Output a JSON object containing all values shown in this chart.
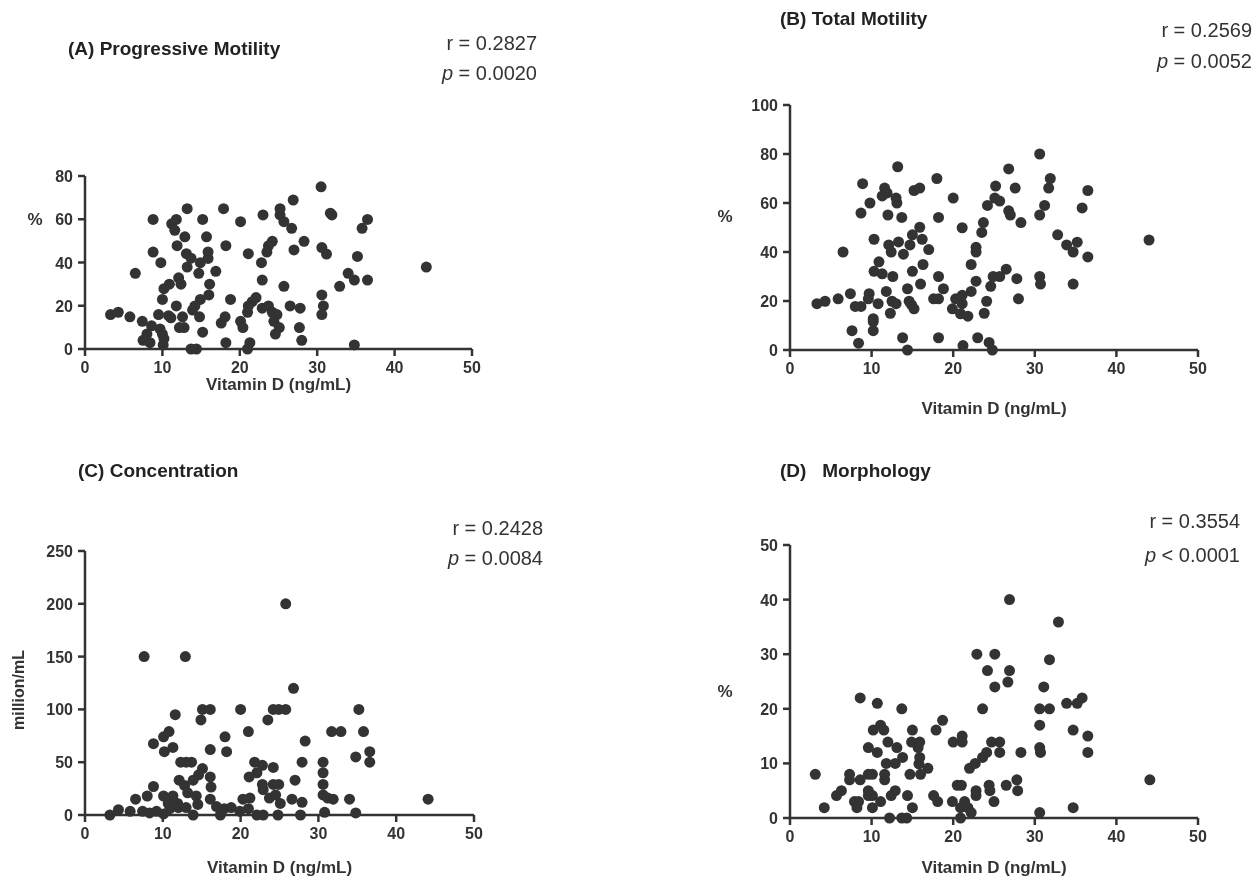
{
  "chart_data": [
    {
      "type": "scatter",
      "title": "(A) Progressive Motility",
      "xlabel": "Vitamin D (ng/mL)",
      "ylabel": "%",
      "annotations": [
        "r = 0.2827",
        "p = 0.0020"
      ],
      "color": "#333333",
      "marker": "circle",
      "xlim": [
        0,
        50
      ],
      "xticks": [
        0,
        10,
        20,
        30,
        40,
        50
      ],
      "ylim": [
        0,
        80
      ],
      "yticks": [
        0,
        20,
        40,
        60,
        80
      ],
      "x": [
        30.5,
        26.9,
        13.2,
        17.9,
        25.2,
        25.2,
        23,
        31.7,
        31.9,
        36.5,
        35.8,
        8.8,
        11.8,
        11.2,
        11.6,
        15.2,
        20.1,
        25.7,
        26.7,
        12.9,
        15.7,
        28.3,
        24.2,
        23.7,
        11.9,
        18.2,
        23.5,
        27,
        30.6,
        31.2,
        35.2,
        8.8,
        13.1,
        13.7,
        15.9,
        15.9,
        21.1,
        9.8,
        14.9,
        22.8,
        44.1,
        13.2,
        6.5,
        14.7,
        16.9,
        34,
        12.1,
        12.4,
        10.9,
        10.2,
        16.1,
        22.9,
        25.7,
        34.8,
        36.5,
        32.9,
        10,
        14.9,
        16,
        18.8,
        22.1,
        21.6,
        21.1,
        30.6,
        30.8,
        30.6,
        11.8,
        14.2,
        13.9,
        22.9,
        23.7,
        26.5,
        27.8,
        24.2,
        24.8,
        3.3,
        4.3,
        5.8,
        9.5,
        10.8,
        11.1,
        12.6,
        14.8,
        18.1,
        17.6,
        21,
        20.1,
        20.4,
        24.4,
        7.4,
        8.6,
        9.7,
        10,
        10.2,
        10.1,
        8,
        7.5,
        8.4,
        12.2,
        12.8,
        15.2,
        25.1,
        24.6,
        27.7,
        28,
        18.2,
        21.3,
        21,
        13.7,
        14.4,
        34.8
      ],
      "values": [
        75,
        68.9,
        64.9,
        64.9,
        64.9,
        62,
        62,
        62.8,
        62,
        59.9,
        55.8,
        59.9,
        59.9,
        57.9,
        54.9,
        59.9,
        58.9,
        58.9,
        55.8,
        51.9,
        51.9,
        49.8,
        49.8,
        47.7,
        47.8,
        47.8,
        44.8,
        45.8,
        46.9,
        43.9,
        42.8,
        44.8,
        44.1,
        42,
        44.9,
        41.9,
        44.1,
        39.9,
        39.9,
        39.9,
        37.9,
        37.9,
        35,
        35,
        35.9,
        35,
        32.9,
        30,
        30,
        27.9,
        30,
        31.9,
        29,
        31.9,
        31.9,
        29,
        22.9,
        22.9,
        25,
        22.9,
        23.8,
        21.9,
        19.9,
        25,
        19.9,
        15.9,
        19.9,
        19.9,
        18,
        18.9,
        19.9,
        19.9,
        18.9,
        17,
        15.9,
        15.9,
        17,
        14.9,
        15.9,
        15.4,
        14.4,
        14.9,
        14.9,
        14.9,
        12,
        17,
        12.8,
        9.9,
        12.8,
        12.8,
        10.7,
        9.2,
        6.9,
        4.8,
        1.9,
        6.9,
        4,
        2.9,
        9.9,
        9.9,
        7.8,
        9.9,
        6.9,
        9.9,
        4,
        2.9,
        2.9,
        0,
        0,
        0,
        1.9
      ]
    },
    {
      "type": "scatter",
      "title": "(B) Total Motility",
      "xlabel": "Vitamin D (ng/mL)",
      "ylabel": "%",
      "annotations": [
        "r = 0.2569",
        "p = 0.0052"
      ],
      "color": "#333333",
      "marker": "circle",
      "xlim": [
        0,
        50
      ],
      "xticks": [
        0,
        10,
        20,
        30,
        40,
        50
      ],
      "ylim": [
        0,
        100
      ],
      "yticks": [
        0,
        20,
        40,
        60,
        80,
        100
      ],
      "x": [
        30.6,
        13.2,
        26.8,
        18,
        31.9,
        31.7,
        8.9,
        11.6,
        11.3,
        11.9,
        13,
        13.1,
        15.2,
        15.9,
        25.2,
        27.6,
        36.5,
        20,
        25.1,
        25.7,
        24.2,
        9.8,
        31.2,
        30.6,
        35.8,
        8.7,
        12,
        13.7,
        18.2,
        26.8,
        27,
        28.3,
        21.1,
        23.7,
        23.5,
        15.9,
        15,
        16.2,
        10.3,
        12.1,
        13.3,
        12.4,
        14.7,
        13.9,
        17,
        6.5,
        22.8,
        22.8,
        32.8,
        33.9,
        35.2,
        34.7,
        36.5,
        44,
        10.9,
        10.3,
        11.3,
        12.6,
        15,
        16.3,
        22.2,
        18.2,
        16,
        22.8,
        24.9,
        25.7,
        26.5,
        27.8,
        30.6,
        30.7,
        34.7,
        3.3,
        4.3,
        5.9,
        7.4,
        8,
        8.7,
        9.7,
        9.6,
        10.8,
        11.8,
        12.5,
        13,
        14.4,
        14.6,
        14.9,
        15.2,
        17.6,
        18.2,
        18.8,
        20.3,
        21.1,
        21.1,
        19.9,
        20.9,
        21.8,
        22.2,
        24.6,
        24.1,
        23.8,
        28,
        10.2,
        10.2,
        12.3,
        7.6,
        8.4,
        10.2,
        13.8,
        14.4,
        18.2,
        21.2,
        23,
        24.4,
        24.8
      ],
      "values": [
        80,
        74.8,
        73.9,
        70,
        70,
        66.1,
        67.9,
        66.1,
        62.9,
        64.1,
        62,
        60,
        65.1,
        66.1,
        66.9,
        66.1,
        65.1,
        62,
        62,
        60.8,
        59,
        60,
        59,
        55.1,
        58,
        55.9,
        55.1,
        54.1,
        54.1,
        56.8,
        55.1,
        52,
        49.9,
        52,
        48,
        50.1,
        47,
        45.2,
        45.2,
        42.9,
        44.1,
        40,
        42.9,
        39.1,
        41,
        40,
        41.9,
        40,
        47,
        42.9,
        44,
        40,
        38,
        44.9,
        36,
        32.1,
        31.1,
        30,
        32.1,
        34.9,
        34.9,
        30,
        26.9,
        28.1,
        30,
        30,
        33,
        29.1,
        30,
        26.9,
        26.9,
        18.9,
        19.9,
        20.9,
        23,
        17.8,
        17.8,
        23,
        20.9,
        18.9,
        23.9,
        19.9,
        18.9,
        25,
        19.9,
        18.4,
        16.8,
        20.9,
        20.9,
        25,
        20.9,
        22.3,
        18.9,
        16.8,
        14.8,
        13.8,
        23.9,
        26,
        19.9,
        15,
        20.9,
        12.8,
        11.6,
        15,
        7.9,
        2.8,
        7.9,
        5,
        0,
        5,
        1.8,
        5,
        3.1,
        0
      ]
    },
    {
      "type": "scatter",
      "title": "(C) Concentration",
      "xlabel": "Vitamin D (ng/mL)",
      "ylabel": "million/mL",
      "annotations": [
        "r = 0.2428",
        "p = 0.0084"
      ],
      "color": "#333333",
      "marker": "circle",
      "xlim": [
        0,
        50
      ],
      "xticks": [
        0,
        10,
        20,
        30,
        40,
        50
      ],
      "ylim": [
        0,
        250
      ],
      "yticks": [
        0,
        50,
        100,
        150,
        200,
        250
      ],
      "x": [
        25.8,
        7.6,
        12.9,
        26.8,
        11.6,
        15.1,
        16.1,
        14.9,
        20,
        23.5,
        24.2,
        24.9,
        25.8,
        35.2,
        21,
        31.7,
        32.9,
        35.8,
        10.1,
        10.8,
        8.8,
        10.2,
        11.3,
        16.1,
        18,
        18.2,
        28.3,
        36.6,
        36.6,
        34.8,
        12.3,
        13,
        13.7,
        15.1,
        14.6,
        16.1,
        16.2,
        12.1,
        12.8,
        13.9,
        21.8,
        22.8,
        24.2,
        22.1,
        21.1,
        22.8,
        22.9,
        24.2,
        24.9,
        23.7,
        24.5,
        25.1,
        27.9,
        27,
        26.6,
        27.9,
        30.6,
        30.6,
        30.6,
        30.6,
        31.2,
        31.9,
        34,
        34.8,
        30.8,
        44.1,
        8.8,
        8,
        6.5,
        10.1,
        11.3,
        10.7,
        11.9,
        13.2,
        14.3,
        14.5,
        16.1,
        16.9,
        17.9,
        18.8,
        20.3,
        21.2,
        3.2,
        4.3,
        5.8,
        7.4,
        8.3,
        9.2,
        10.1,
        10.9,
        12,
        13,
        13.9,
        17.4,
        19.9,
        21,
        22.1,
        22.9,
        24.8,
        27.7
      ],
      "values": [
        200,
        150,
        150,
        120,
        95,
        100,
        100,
        90,
        100,
        90,
        100,
        100,
        100,
        100,
        79,
        79,
        79,
        79,
        74,
        79,
        67.5,
        60,
        64,
        62,
        74,
        60,
        70,
        60,
        50,
        55,
        50,
        50,
        50,
        44,
        38,
        36,
        26.5,
        33,
        28,
        33,
        50,
        47,
        45,
        40,
        36,
        29,
        24,
        29,
        29,
        16,
        19,
        11,
        50,
        33,
        15,
        12,
        50,
        40,
        29,
        19,
        16,
        15,
        15,
        2,
        2.5,
        15,
        27,
        18,
        15,
        18,
        18,
        11,
        11,
        21,
        18,
        10,
        15,
        8,
        6,
        7,
        15,
        16,
        0,
        5,
        3.5,
        3.5,
        2,
        3.5,
        1,
        6,
        7,
        7,
        0,
        0,
        3.5,
        6,
        0,
        0,
        0,
        0
      ]
    },
    {
      "type": "scatter",
      "title": "(D)   Morphology",
      "xlabel": "Vitamin D (ng/mL)",
      "ylabel": "%",
      "annotations": [
        "r = 0.3554",
        "p < 0.0001"
      ],
      "color": "#333333",
      "marker": "circle",
      "xlim": [
        0,
        50
      ],
      "xticks": [
        0,
        10,
        20,
        30,
        40,
        50
      ],
      "ylim": [
        0,
        50
      ],
      "yticks": [
        0,
        10,
        20,
        30,
        40,
        50
      ],
      "x": [
        26.9,
        32.9,
        22.9,
        25.1,
        31.8,
        24.2,
        26.9,
        26.7,
        25.1,
        31.1,
        8.6,
        10.7,
        13.7,
        23.6,
        30.6,
        31.8,
        33.9,
        35.2,
        35.8,
        18.7,
        11.1,
        10.2,
        11.5,
        15,
        17.9,
        30.6,
        34.7,
        36.5,
        20,
        21.1,
        21.1,
        24.7,
        25.7,
        12,
        13.1,
        9.6,
        10.7,
        14.9,
        15.9,
        15.7,
        11.8,
        12.9,
        13.8,
        15.9,
        15.8,
        16.9,
        16,
        24.1,
        23.6,
        22.7,
        22,
        25.7,
        28.3,
        30.6,
        30.7,
        36.5,
        3.1,
        7.3,
        7.3,
        8.6,
        9.6,
        10.1,
        11.6,
        11.6,
        14.7,
        44.1,
        27.8,
        27.9,
        26.5,
        24.4,
        24.5,
        20.5,
        21,
        22.8,
        22.8,
        5.7,
        6.3,
        4.2,
        7.9,
        8.4,
        8.2,
        9.6,
        9.6,
        10.1,
        10.1,
        11.1,
        12.4,
        12.9,
        14.4,
        15,
        12.2,
        13.7,
        14.3,
        17.6,
        18.1,
        19.9,
        20.9,
        21.4,
        21.8,
        22.2,
        20.9,
        25,
        30.6,
        34.7
      ],
      "values": [
        40,
        35.9,
        30,
        30,
        29,
        27,
        27,
        24.9,
        24,
        24,
        22,
        21,
        20,
        20,
        20,
        20,
        21,
        21,
        22,
        17.9,
        17,
        16.1,
        16.1,
        16.1,
        16.1,
        17,
        16.1,
        15,
        13.9,
        15,
        13.9,
        13.9,
        13.9,
        13.9,
        12.9,
        12.9,
        12,
        13.9,
        13.9,
        12.9,
        10,
        10,
        11.1,
        11.1,
        9.9,
        9.1,
        8,
        12,
        11.1,
        10,
        9.1,
        12,
        12,
        12.9,
        12,
        12,
        8,
        8,
        7,
        7,
        8,
        8,
        8,
        7,
        8,
        7,
        7,
        5,
        6,
        6,
        5,
        6,
        6,
        5,
        4.1,
        4.1,
        5,
        1.9,
        3,
        3,
        1.9,
        5,
        4.1,
        4.1,
        1.9,
        3,
        4.1,
        5,
        4.1,
        1.9,
        0,
        0,
        0,
        4.1,
        3,
        3,
        1.9,
        3,
        1.9,
        1,
        0,
        3,
        1,
        1.9
      ]
    }
  ]
}
